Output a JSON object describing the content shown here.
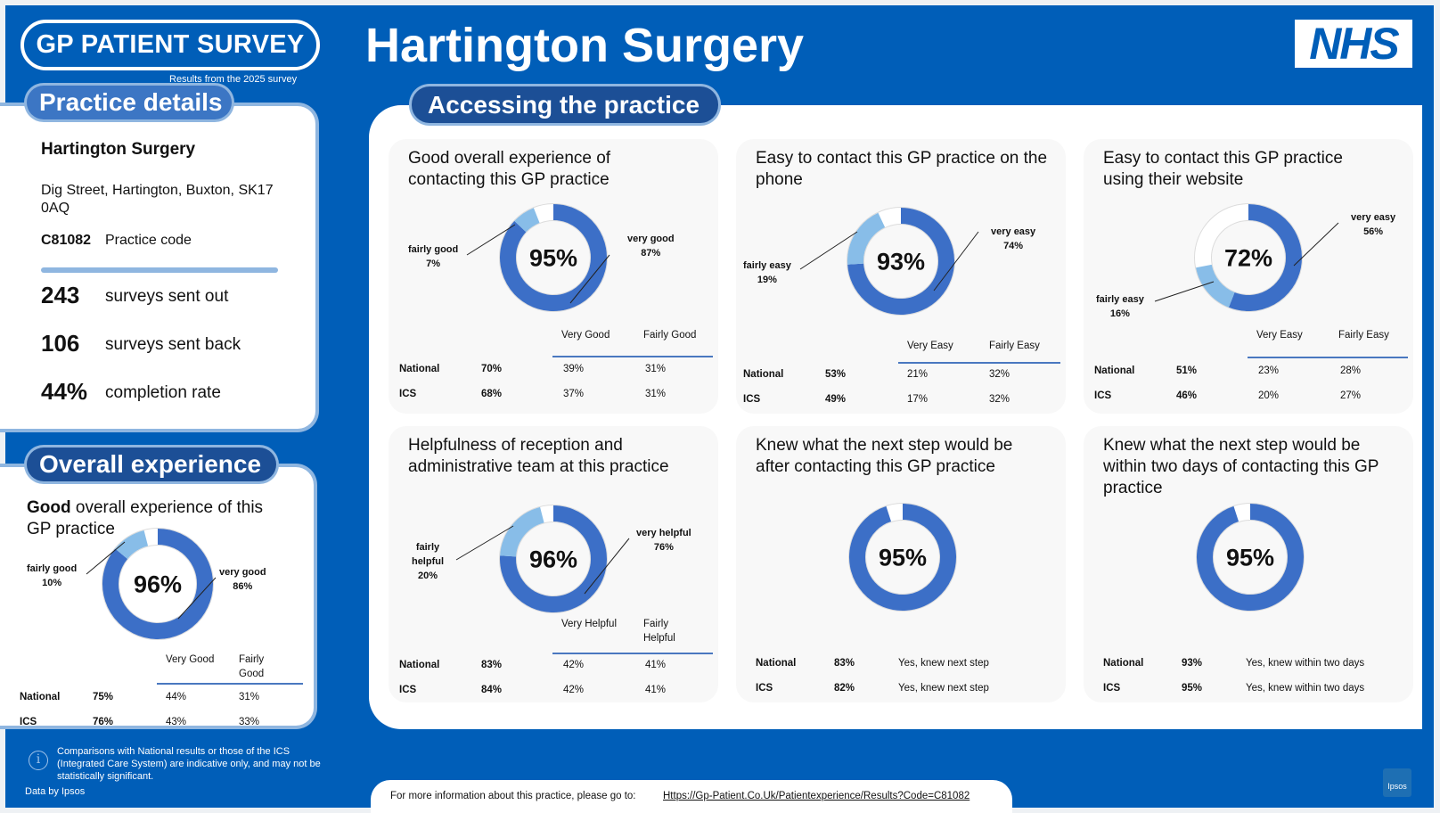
{
  "header": {
    "survey_logo": "GP PATIENT SURVEY",
    "survey_sub": "Results from the 2025 survey",
    "title": "Hartington Surgery",
    "nhs_logo": "NHS"
  },
  "details": {
    "section_label": "Practice details",
    "name": "Hartington Surgery",
    "address": "Dig Street, Hartington, Buxton, SK17 0AQ",
    "code": "C81082",
    "code_label": "Practice code",
    "stats": [
      {
        "value": "243",
        "label": "surveys sent out"
      },
      {
        "value": "106",
        "label": "surveys sent back"
      },
      {
        "value": "44%",
        "label": "completion rate"
      }
    ]
  },
  "overall": {
    "section_label": "Overall experience",
    "title_bold": "Good",
    "title_rest": " overall experience of this GP practice",
    "pct": "96%",
    "share": 0.96,
    "label_a": "fairly good",
    "label_a_pct": "10%",
    "label_b": "very good",
    "label_b_pct": "86%",
    "col1": "Very Good",
    "col2": "Fairly Good",
    "rows": [
      {
        "name": "National",
        "total": "75%",
        "c1": "44%",
        "c2": "31%"
      },
      {
        "name": "ICS",
        "total": "76%",
        "c1": "43%",
        "c2": "33%"
      }
    ]
  },
  "access": {
    "section_label": "Accessing the practice",
    "cards": [
      {
        "title": "Good overall experience of contacting this GP practice",
        "pct": "95%",
        "primary": 0.87,
        "secondary": 0.07,
        "label_a": "fairly good",
        "label_a_pct": "7%",
        "label_b": "very good",
        "label_b_pct": "87%",
        "col1": "Very Good",
        "col2": "Fairly Good",
        "rows": [
          {
            "name": "National",
            "total": "70%",
            "c1": "39%",
            "c2": "31%"
          },
          {
            "name": "ICS",
            "total": "68%",
            "c1": "37%",
            "c2": "31%"
          }
        ]
      },
      {
        "title": "Easy to contact this GP practice on the phone",
        "pct": "93%",
        "primary": 0.74,
        "secondary": 0.19,
        "label_a": "fairly easy",
        "label_a_pct": "19%",
        "label_b": "very easy",
        "label_b_pct": "74%",
        "col1": "Very Easy",
        "col2": "Fairly Easy",
        "rows": [
          {
            "name": "National",
            "total": "53%",
            "c1": "21%",
            "c2": "32%"
          },
          {
            "name": "ICS",
            "total": "49%",
            "c1": "17%",
            "c2": "32%"
          }
        ]
      },
      {
        "title": "Easy to contact this GP practice using their website",
        "pct": "72%",
        "primary": 0.56,
        "secondary": 0.16,
        "label_a": "fairly easy",
        "label_a_pct": "16%",
        "label_b": "very easy",
        "label_b_pct": "56%",
        "col1": "Very Easy",
        "col2": "Fairly Easy",
        "rows": [
          {
            "name": "National",
            "total": "51%",
            "c1": "23%",
            "c2": "28%"
          },
          {
            "name": "ICS",
            "total": "46%",
            "c1": "20%",
            "c2": "27%"
          }
        ]
      },
      {
        "title": "Helpfulness of reception and administrative team at this practice",
        "pct": "96%",
        "primary": 0.76,
        "secondary": 0.2,
        "label_a": "fairly helpful",
        "label_a_pct": "20%",
        "label_b": "very helpful",
        "label_b_pct": "76%",
        "col1": "Very Helpful",
        "col2": "Fairly Helpful",
        "rows": [
          {
            "name": "National",
            "total": "83%",
            "c1": "42%",
            "c2": "41%"
          },
          {
            "name": "ICS",
            "total": "84%",
            "c1": "42%",
            "c2": "41%"
          }
        ]
      },
      {
        "title": "Knew what the next step would be after contacting this GP practice",
        "pct": "95%",
        "primary": 0.95,
        "secondary": 0,
        "rows": [
          {
            "name": "National",
            "total": "83%",
            "desc": "Yes, knew next step"
          },
          {
            "name": "ICS",
            "total": "82%",
            "desc": "Yes, knew next step"
          }
        ]
      },
      {
        "title": "Knew what the next step would be within two days of contacting this GP practice",
        "pct": "95%",
        "primary": 0.95,
        "secondary": 0,
        "rows": [
          {
            "name": "National",
            "total": "93%",
            "desc": "Yes, knew within two days"
          },
          {
            "name": "ICS",
            "total": "95%",
            "desc": "Yes, knew within two days"
          }
        ]
      }
    ]
  },
  "footer": {
    "note": "Comparisons with National results or those of the ICS (Integrated Care System) are indicative only, and may not be statistically significant.",
    "data_by": "Data by Ipsos",
    "more_info": "For more information about this practice, please go to:",
    "link": "Https://Gp-Patient.Co.Uk/Patientexperience/Results?Code=C81082",
    "ipsos_logo": "Ipsos"
  },
  "colors": {
    "brand": "#005eb8",
    "primary_segment": "#3c6fc7",
    "secondary_segment": "#88bde8",
    "remainder": "#ffffff"
  }
}
